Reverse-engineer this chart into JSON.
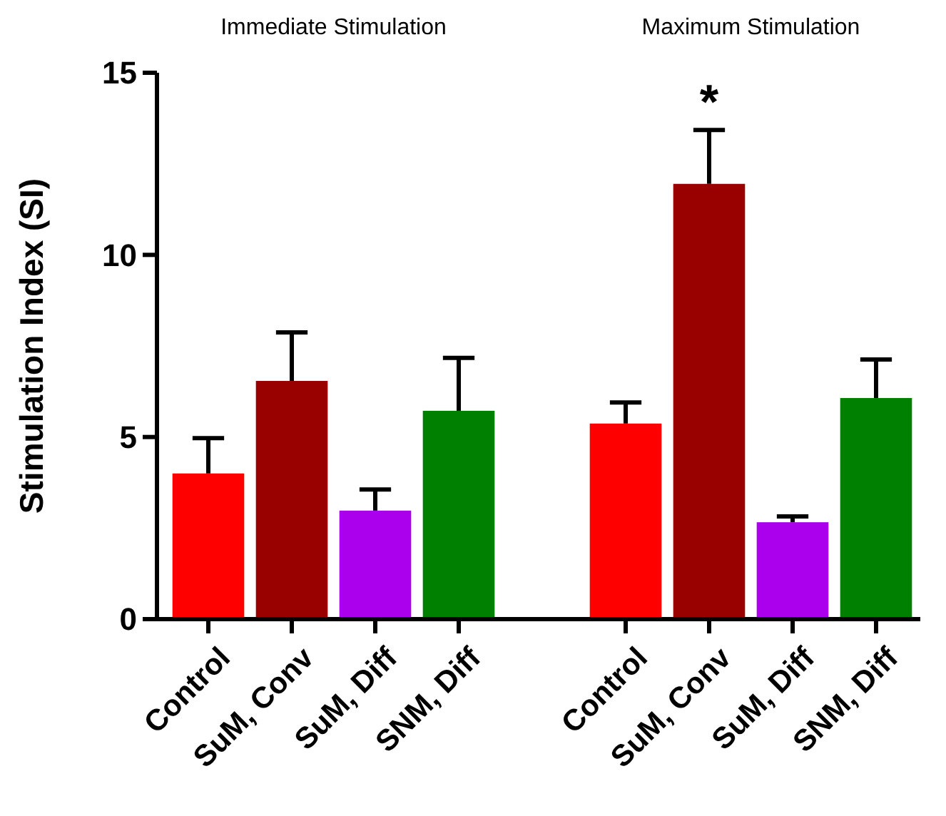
{
  "chart_data": {
    "type": "bar",
    "ylabel": "Stimulation Index (SI)",
    "categories": [
      "Control",
      "SuM, Conv",
      "SuM, Diff",
      "SNM, Diff",
      null,
      "Control",
      "SuM, Conv",
      "SuM, Diff",
      "SNM, Diff"
    ],
    "values": [
      4.0,
      6.54,
      2.98,
      5.72,
      null,
      5.37,
      11.95,
      2.66,
      6.07
    ],
    "colors": [
      "#ff0000",
      "#990000",
      "#aa00ee",
      "#008000",
      null,
      "#ff0000",
      "#990000",
      "#aa00ee",
      "#008000"
    ],
    "errors": [
      [
        4.0,
        4.97
      ],
      [
        6.54,
        7.87
      ],
      [
        2.98,
        3.56
      ],
      [
        5.72,
        7.17
      ],
      null,
      [
        5.37,
        5.95
      ],
      [
        11.95,
        13.43
      ],
      [
        2.66,
        2.82
      ],
      [
        6.07,
        7.13
      ]
    ],
    "ylim": [
      0,
      15
    ],
    "yticks": [
      0,
      5,
      10,
      15
    ],
    "grid": false,
    "annotations": [
      "Immediate Stimulation",
      "Maximum Stimulation",
      "*"
    ]
  }
}
